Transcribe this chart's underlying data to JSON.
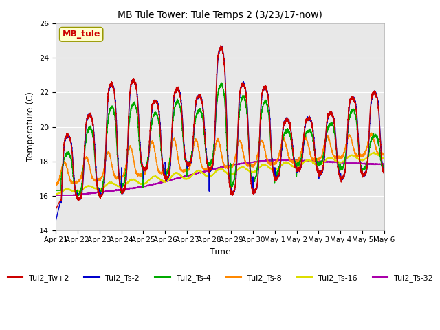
{
  "title": "MB Tule Tower: Tule Temps 2 (3/23/17-now)",
  "xlabel": "Time",
  "ylabel": "Temperature (C)",
  "ylim": [
    14,
    26
  ],
  "background_color": "#ffffff",
  "plot_bg_color": "#e8e8e8",
  "series_colors": {
    "Tul2_Tw+2": "#cc0000",
    "Tul2_Ts-2": "#0000cc",
    "Tul2_Ts-4": "#00aa00",
    "Tul2_Ts-8": "#ff8800",
    "Tul2_Ts-16": "#dddd00",
    "Tul2_Ts-32": "#aa00aa"
  },
  "xtick_labels": [
    "Apr 21",
    "Apr 22",
    "Apr 23",
    "Apr 24",
    "Apr 25",
    "Apr 26",
    "Apr 27",
    "Apr 28",
    "Apr 29",
    "Apr 30",
    "May 1",
    "May 2",
    "May 3",
    "May 4",
    "May 5",
    "May 6"
  ],
  "ytick_labels": [
    "14",
    "16",
    "18",
    "20",
    "22",
    "24",
    "26"
  ],
  "annotation_text": "MB_tule",
  "annotation_color": "#cc0000",
  "annotation_bg": "#ffffcc"
}
